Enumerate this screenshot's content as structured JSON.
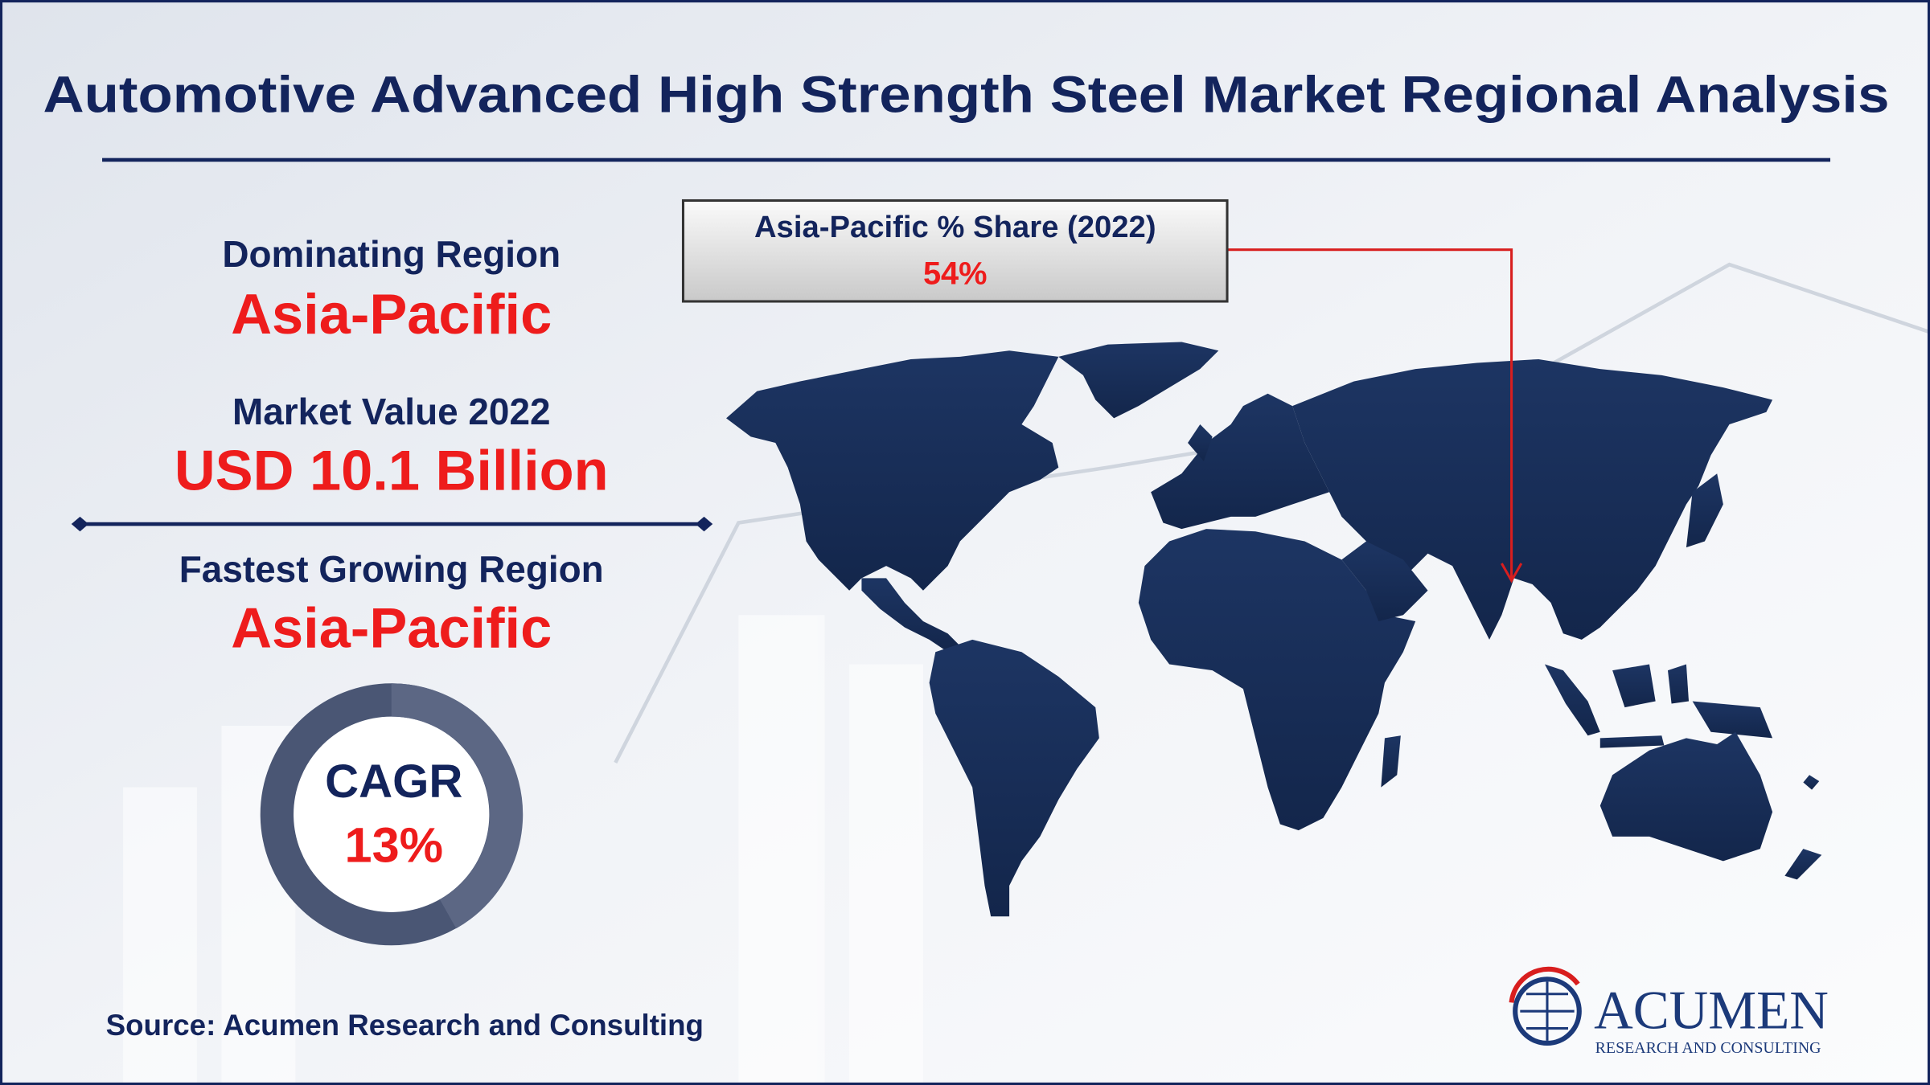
{
  "header": {
    "title": "Automotive Advanced High Strength Steel Market Regional Analysis"
  },
  "stats": [
    {
      "label": "Dominating Region",
      "value": "Asia-Pacific"
    },
    {
      "label": "Market Value 2022",
      "value": "USD 10.1 Billion"
    },
    {
      "label": "Fastest Growing Region",
      "value": "Asia-Pacific"
    }
  ],
  "cagr": {
    "label": "CAGR",
    "value": "13%"
  },
  "callout": {
    "label": "Asia-Pacific % Share (2022)",
    "value": "54%"
  },
  "source": "Source: Acumen Research and Consulting",
  "logo": {
    "name": "ACUMEN",
    "tagline": "RESEARCH AND CONSULTING"
  }
}
